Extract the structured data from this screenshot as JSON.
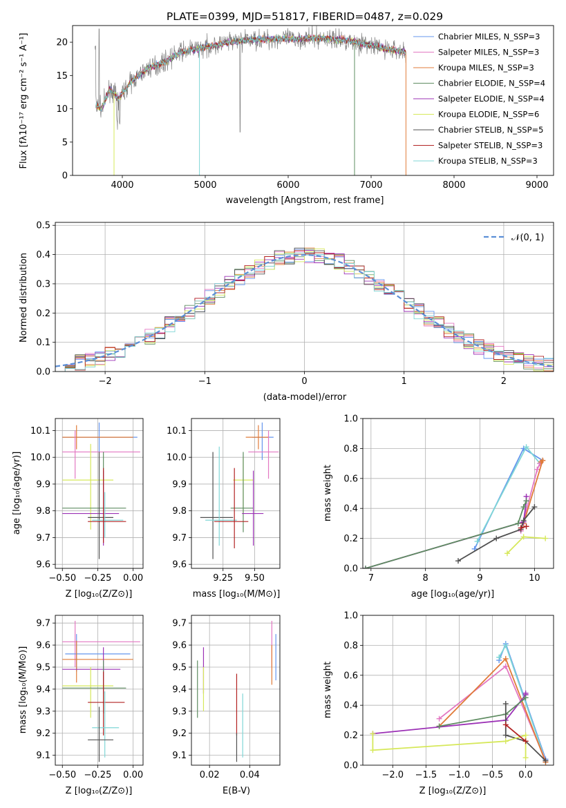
{
  "chart_data": [
    {
      "id": "spectrum",
      "type": "line",
      "title": "PLATE=0399, MJD=51817, FIBERID=0487, z=0.029",
      "xlabel": "wavelength [Angstrom, rest frame]",
      "ylabel": "Flux [fλ10⁻¹⁷ erg cm⁻² s⁻¹ A⁻¹]",
      "xlim": [
        3400,
        9200
      ],
      "ylim": [
        0,
        22.5
      ],
      "xticks": [
        4000,
        5000,
        6000,
        7000,
        8000,
        9000
      ],
      "yticks": [
        0,
        5,
        10,
        15,
        20
      ],
      "grid": false,
      "legend_position": "upper-right",
      "series": [
        {
          "name": "Chabrier MILES, N_SSP=3",
          "color": "#6495ED"
        },
        {
          "name": "Salpeter MILES, N_SSP=3",
          "color": "#E377C2"
        },
        {
          "name": "Kroupa MILES, N_SSP=3",
          "color": "#E07B39"
        },
        {
          "name": "Chabrier ELODIE, N_SSP=4",
          "color": "#5E8C61"
        },
        {
          "name": "Salpeter ELODIE, N_SSP=4",
          "color": "#9B30B5"
        },
        {
          "name": "Kroupa ELODIE, N_SSP=6",
          "color": "#D6E85A"
        },
        {
          "name": "Chabrier STELIB, N_SSP=5",
          "color": "#505050"
        },
        {
          "name": "Salpeter STELIB, N_SSP=3",
          "color": "#B22222"
        },
        {
          "name": "Kroupa STELIB, N_SSP=3",
          "color": "#7FD6D6"
        }
      ],
      "continuum": {
        "x": [
          3680,
          3750,
          3850,
          3950,
          4100,
          4300,
          4500,
          4700,
          4900,
          5100,
          5300,
          5500,
          5800,
          6100,
          6400,
          6700,
          7000,
          7200,
          7420
        ],
        "y": [
          10.5,
          10,
          13,
          11.5,
          14,
          16,
          17,
          18.5,
          19,
          19.5,
          20,
          20.3,
          20.5,
          20.5,
          20.6,
          20.3,
          19.5,
          19,
          18.5
        ]
      },
      "data_noisy_gray": {
        "x_range": [
          3670,
          7420
        ],
        "spike_at": 3720,
        "spike_value": 22,
        "dip_at": 5420,
        "dip_value": 6.5
      }
    },
    {
      "id": "residuals",
      "type": "line",
      "xlabel": "(data-model)/error",
      "ylabel": "Normed distribution",
      "xlim": [
        -2.5,
        2.5
      ],
      "ylim": [
        0,
        0.51
      ],
      "xticks": [
        -2,
        -1,
        0,
        1,
        2
      ],
      "xtick_labels": [
        "−2",
        "−1",
        "0",
        "1",
        "2"
      ],
      "yticks": [
        0,
        0.1,
        0.2,
        0.3,
        0.4,
        0.5
      ],
      "ytick_labels": [
        "0.0",
        "0.1",
        "0.2",
        "0.3",
        "0.4",
        "0.5"
      ],
      "grid": true,
      "legend_position": "upper-right",
      "reference_curve": {
        "name": "𝒩(0, 1)",
        "color": "#5B8ED6",
        "style": "dashed"
      }
    },
    {
      "id": "age_vs_Z",
      "type": "scatter",
      "xlabel": "Z [log₁₀(Z/Z⊙)]",
      "ylabel": "age [log₁₀(age/yr)]",
      "xlim": [
        -0.55,
        0.07
      ],
      "ylim": [
        9.585,
        10.145
      ],
      "xticks": [
        -0.5,
        -0.25,
        0.0
      ],
      "xtick_labels": [
        "−0.50",
        "−0.25",
        "0.00"
      ],
      "yticks": [
        9.6,
        9.7,
        9.8,
        9.9,
        10.0,
        10.1
      ],
      "ytick_labels": [
        "9.6",
        "9.7",
        "9.8",
        "9.9",
        "10.0",
        "10.1"
      ],
      "grid": true,
      "points": [
        {
          "c": "#6495ED",
          "x": -0.24,
          "y": 10.075,
          "xe": [
            -0.5,
            0.03
          ],
          "ye": [
            10.02,
            10.13
          ]
        },
        {
          "c": "#E07B39",
          "x": -0.4,
          "y": 10.075,
          "xe": [
            -0.5,
            0.0
          ],
          "ye": [
            10.03,
            10.12
          ]
        },
        {
          "c": "#E377C2",
          "x": -0.41,
          "y": 10.02,
          "xe": [
            -0.5,
            0.05
          ],
          "ye": [
            9.92,
            10.1
          ]
        },
        {
          "c": "#D6E85A",
          "x": -0.3,
          "y": 9.915,
          "xe": [
            -0.5,
            -0.14
          ],
          "ye": [
            9.73,
            10.05
          ]
        },
        {
          "c": "#5E8C61",
          "x": -0.21,
          "y": 9.81,
          "xe": [
            -0.5,
            -0.05
          ],
          "ye": [
            9.7,
            10.02
          ]
        },
        {
          "c": "#9B30B5",
          "x": -0.21,
          "y": 9.79,
          "xe": [
            -0.5,
            -0.1
          ],
          "ye": [
            9.67,
            9.95
          ]
        },
        {
          "c": "#505050",
          "x": -0.24,
          "y": 9.775,
          "xe": [
            -0.32,
            -0.14
          ],
          "ye": [
            9.62,
            10.02
          ]
        },
        {
          "c": "#7FD6D6",
          "x": -0.2,
          "y": 9.765,
          "xe": [
            -0.29,
            -0.07
          ],
          "ye": [
            9.7,
            9.87
          ]
        },
        {
          "c": "#B22222",
          "x": -0.21,
          "y": 9.76,
          "xe": [
            -0.32,
            -0.05
          ],
          "ye": [
            9.68,
            9.96
          ]
        }
      ]
    },
    {
      "id": "age_vs_mass",
      "type": "scatter",
      "xlabel": "mass [log₁₀(M/M⊙)]",
      "xlim": [
        9.0,
        9.7
      ],
      "ylim": [
        9.585,
        10.145
      ],
      "xticks": [
        9.25,
        9.5
      ],
      "xtick_labels": [
        "9.25",
        "9.50"
      ],
      "yticks": [
        9.6,
        9.7,
        9.8,
        9.9,
        10.0,
        10.1
      ],
      "ytick_labels": [
        "9.6",
        "9.7",
        "9.8",
        "9.9",
        "10.0",
        "10.1"
      ],
      "grid": true,
      "points": [
        {
          "c": "#6495ED",
          "x": 9.56,
          "y": 10.075,
          "xe": [
            9.48,
            9.65
          ],
          "ye": [
            9.99,
            10.13
          ]
        },
        {
          "c": "#E07B39",
          "x": 9.53,
          "y": 10.075,
          "xe": [
            9.43,
            9.61
          ],
          "ye": [
            10.03,
            10.12
          ]
        },
        {
          "c": "#E377C2",
          "x": 9.61,
          "y": 10.02,
          "xe": [
            9.45,
            9.69
          ],
          "ye": [
            9.92,
            10.1
          ]
        },
        {
          "c": "#D6E85A",
          "x": 9.41,
          "y": 9.915,
          "xe": [
            9.33,
            9.49
          ],
          "ye": [
            9.79,
            10.0
          ]
        },
        {
          "c": "#5E8C61",
          "x": 9.41,
          "y": 9.81,
          "xe": [
            9.31,
            9.49
          ],
          "ye": [
            9.72,
            10.02
          ]
        },
        {
          "c": "#9B30B5",
          "x": 9.49,
          "y": 9.79,
          "xe": [
            9.4,
            9.57
          ],
          "ye": [
            9.67,
            9.95
          ]
        },
        {
          "c": "#505050",
          "x": 9.17,
          "y": 9.775,
          "xe": [
            9.07,
            9.33
          ],
          "ye": [
            9.62,
            10.02
          ]
        },
        {
          "c": "#7FD6D6",
          "x": 9.22,
          "y": 9.765,
          "xe": [
            9.11,
            9.36
          ],
          "ye": [
            9.67,
            10.04
          ]
        },
        {
          "c": "#B22222",
          "x": 9.34,
          "y": 9.76,
          "xe": [
            9.18,
            9.45
          ],
          "ye": [
            9.66,
            9.96
          ]
        }
      ]
    },
    {
      "id": "massweight_vs_age",
      "type": "line",
      "xlabel": "age [log₁₀(age/yr)]",
      "ylabel": "mass weight",
      "xlim": [
        6.85,
        10.35
      ],
      "ylim": [
        0,
        1.0
      ],
      "xticks": [
        7,
        8,
        9,
        10
      ],
      "yticks": [
        0,
        0.2,
        0.4,
        0.6,
        0.8,
        1.0
      ],
      "ytick_labels": [
        "0.0",
        "0.2",
        "0.4",
        "0.6",
        "0.8",
        "1.0"
      ],
      "grid": true,
      "series": [
        {
          "c": "#6495ED",
          "x": [
            8.9,
            9.8,
            10.15
          ],
          "y": [
            0.13,
            0.8,
            0.72
          ]
        },
        {
          "c": "#7FD6D6",
          "x": [
            8.95,
            9.85,
            10.1
          ],
          "y": [
            0.18,
            0.81,
            0.7
          ]
        },
        {
          "c": "#E377C2",
          "x": [
            9.75,
            10.05,
            10.1
          ],
          "y": [
            0.25,
            0.66,
            0.7
          ]
        },
        {
          "c": "#E07B39",
          "x": [
            9.8,
            10.15,
            10.12
          ],
          "y": [
            0.3,
            0.72,
            0.71
          ]
        },
        {
          "c": "#9B30B5",
          "x": [
            6.9,
            9.8,
            9.85,
            9.85
          ],
          "y": [
            0.0,
            0.31,
            0.45,
            0.48
          ]
        },
        {
          "c": "#5E8C61",
          "x": [
            6.9,
            9.7,
            9.8,
            9.85
          ],
          "y": [
            0.0,
            0.3,
            0.41,
            0.45
          ]
        },
        {
          "c": "#505050",
          "x": [
            8.6,
            9.3,
            9.75,
            9.8,
            10.0
          ],
          "y": [
            0.05,
            0.2,
            0.26,
            0.32,
            0.41
          ]
        },
        {
          "c": "#D6E85A",
          "x": [
            9.5,
            9.8,
            10.2
          ],
          "y": [
            0.1,
            0.21,
            0.2
          ]
        },
        {
          "c": "#B22222",
          "x": [
            9.75,
            9.85
          ],
          "y": [
            0.27,
            0.28
          ]
        }
      ]
    },
    {
      "id": "mass_vs_Z",
      "type": "scatter",
      "xlabel": "Z [log₁₀(Z/Z⊙)]",
      "ylabel": "mass [log₁₀(M/M⊙)]",
      "xlim": [
        -0.55,
        0.07
      ],
      "ylim": [
        9.055,
        9.735
      ],
      "xticks": [
        -0.5,
        -0.25,
        0.0
      ],
      "xtick_labels": [
        "−0.50",
        "−0.25",
        "0.00"
      ],
      "yticks": [
        9.1,
        9.2,
        9.3,
        9.4,
        9.5,
        9.6,
        9.7
      ],
      "ytick_labels": [
        "9.1",
        "9.2",
        "9.3",
        "9.4",
        "9.5",
        "9.6",
        "9.7"
      ],
      "grid": true,
      "points": [
        {
          "c": "#E377C2",
          "x": -0.41,
          "y": 9.615,
          "xe": [
            -0.5,
            0.05
          ],
          "ye": [
            9.5,
            9.71
          ]
        },
        {
          "c": "#6495ED",
          "x": -0.4,
          "y": 9.56,
          "xe": [
            -0.48,
            -0.02
          ],
          "ye": [
            9.48,
            9.65
          ]
        },
        {
          "c": "#E07B39",
          "x": -0.4,
          "y": 9.535,
          "xe": [
            -0.5,
            0.0
          ],
          "ye": [
            9.43,
            9.62
          ]
        },
        {
          "c": "#9B30B5",
          "x": -0.21,
          "y": 9.49,
          "xe": [
            -0.5,
            -0.09
          ],
          "ye": [
            9.38,
            9.59
          ]
        },
        {
          "c": "#D6E85A",
          "x": -0.3,
          "y": 9.415,
          "xe": [
            -0.5,
            -0.14
          ],
          "ye": [
            9.27,
            9.5
          ]
        },
        {
          "c": "#5E8C61",
          "x": -0.21,
          "y": 9.405,
          "xe": [
            -0.5,
            -0.05
          ],
          "ye": [
            9.29,
            9.53
          ]
        },
        {
          "c": "#B22222",
          "x": -0.21,
          "y": 9.34,
          "xe": [
            -0.32,
            -0.06
          ],
          "ye": [
            9.19,
            9.48
          ]
        },
        {
          "c": "#7FD6D6",
          "x": -0.2,
          "y": 9.225,
          "xe": [
            -0.29,
            -0.1
          ],
          "ye": [
            9.09,
            9.39
          ]
        },
        {
          "c": "#505050",
          "x": -0.24,
          "y": 9.17,
          "xe": [
            -0.32,
            -0.14
          ],
          "ye": [
            9.07,
            9.32
          ]
        }
      ]
    },
    {
      "id": "mass_vs_EBV",
      "type": "scatter",
      "xlabel": "E(B-V)",
      "xlim": [
        0.011,
        0.055
      ],
      "ylim": [
        9.055,
        9.735
      ],
      "xticks": [
        0.02,
        0.04
      ],
      "xtick_labels": [
        "0.02",
        "0.04"
      ],
      "yticks": [
        9.1,
        9.2,
        9.3,
        9.4,
        9.5,
        9.6,
        9.7
      ],
      "ytick_labels": [
        "9.1",
        "9.2",
        "9.3",
        "9.4",
        "9.5",
        "9.6",
        "9.7"
      ],
      "grid": true,
      "points": [
        {
          "c": "#E377C2",
          "x": 0.051,
          "ye": [
            9.5,
            9.71
          ]
        },
        {
          "c": "#6495ED",
          "x": 0.053,
          "ye": [
            9.44,
            9.65
          ]
        },
        {
          "c": "#E07B39",
          "x": 0.051,
          "ye": [
            9.42,
            9.6
          ]
        },
        {
          "c": "#9B30B5",
          "x": 0.017,
          "ye": [
            9.38,
            9.59
          ]
        },
        {
          "c": "#D6E85A",
          "x": 0.017,
          "ye": [
            9.3,
            9.5
          ]
        },
        {
          "c": "#5E8C61",
          "x": 0.014,
          "ye": [
            9.27,
            9.53
          ]
        },
        {
          "c": "#B22222",
          "x": 0.0335,
          "ye": [
            9.19,
            9.47
          ]
        },
        {
          "c": "#7FD6D6",
          "x": 0.0365,
          "ye": [
            9.09,
            9.38
          ]
        },
        {
          "c": "#505050",
          "x": 0.0335,
          "ye": [
            9.07,
            9.2
          ]
        }
      ]
    },
    {
      "id": "massweight_vs_Z",
      "type": "line",
      "xlabel": "Z [log₁₀(Z/Z⊙)]",
      "ylabel": "mass weight",
      "xlim": [
        -2.45,
        0.42
      ],
      "ylim": [
        0,
        1.0
      ],
      "xticks": [
        -2.0,
        -1.5,
        -1.0,
        -0.5,
        0.0
      ],
      "xtick_labels": [
        "−2.0",
        "−1.5",
        "−1.0",
        "−0.5",
        "0.0"
      ],
      "yticks": [
        0,
        0.2,
        0.4,
        0.6,
        0.8,
        1.0
      ],
      "ytick_labels": [
        "0.0",
        "0.2",
        "0.4",
        "0.6",
        "0.8",
        "1.0"
      ],
      "grid": true,
      "series": [
        {
          "c": "#6495ED",
          "x": [
            -0.4,
            -0.3,
            0.3
          ],
          "y": [
            0.7,
            0.81,
            0.04
          ]
        },
        {
          "c": "#7FD6D6",
          "x": [
            -0.4,
            -0.3,
            0.3
          ],
          "y": [
            0.72,
            0.8,
            0.03
          ]
        },
        {
          "c": "#E377C2",
          "x": [
            -1.3,
            -0.3,
            0.3
          ],
          "y": [
            0.31,
            0.66,
            0.03
          ]
        },
        {
          "c": "#E07B39",
          "x": [
            -1.3,
            -0.3,
            0.3
          ],
          "y": [
            0.26,
            0.71,
            0.02
          ]
        },
        {
          "c": "#9B30B5",
          "x": [
            -2.3,
            -0.3,
            0.0,
            0.0
          ],
          "y": [
            0.21,
            0.3,
            0.47,
            0.48
          ]
        },
        {
          "c": "#5E8C61",
          "x": [
            -1.3,
            -0.3,
            0.0
          ],
          "y": [
            0.26,
            0.34,
            0.45
          ]
        },
        {
          "c": "#505050",
          "x": [
            -0.3,
            -0.3,
            0.0,
            0.3
          ],
          "y": [
            0.41,
            0.2,
            0.16,
            0.03
          ]
        },
        {
          "c": "#D6E85A",
          "x": [
            -2.3,
            -2.3,
            -0.3,
            0.0,
            0.0
          ],
          "y": [
            0.21,
            0.1,
            0.16,
            0.2,
            0.05
          ]
        },
        {
          "c": "#B22222",
          "x": [
            -0.3,
            0.0
          ],
          "y": [
            0.27,
            0.16
          ]
        }
      ]
    }
  ]
}
